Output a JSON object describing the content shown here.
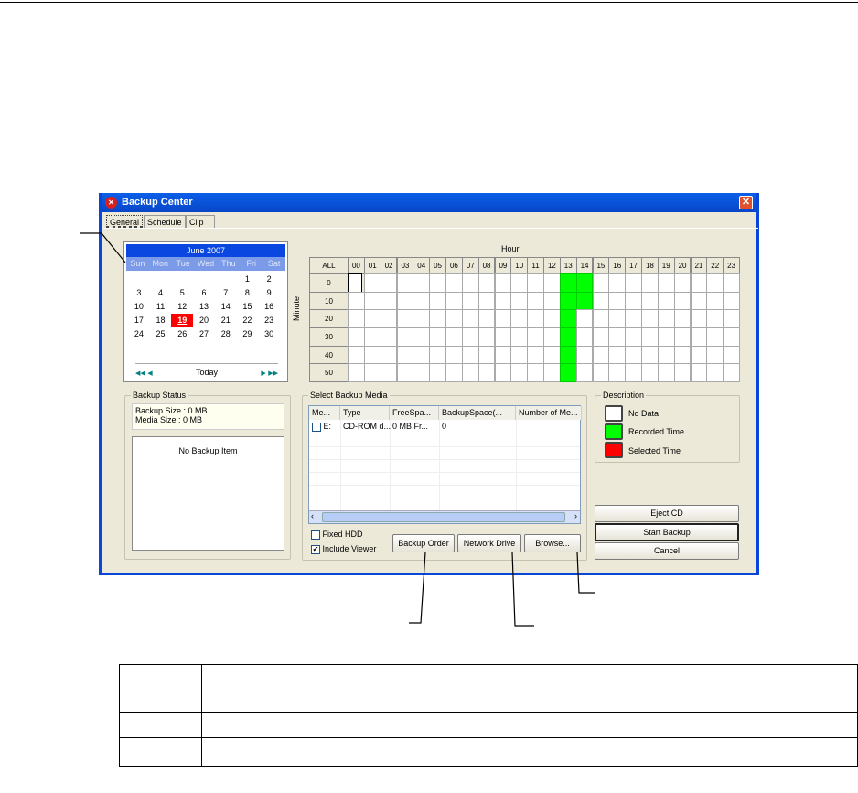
{
  "window": {
    "title": "Backup Center",
    "close": "✕",
    "icon": "app-logo"
  },
  "tabs": [
    {
      "label": "General",
      "active": true
    },
    {
      "label": "Schedule"
    },
    {
      "label": "Clip"
    }
  ],
  "calendar": {
    "month": "June 2007",
    "weekdays": [
      "Sun",
      "Mon",
      "Tue",
      "Wed",
      "Thu",
      "Fri",
      "Sat"
    ],
    "days": [
      "",
      "",
      "",
      "",
      "",
      "1",
      "2",
      "3",
      "4",
      "5",
      "6",
      "7",
      "8",
      "9",
      "10",
      "11",
      "12",
      "13",
      "14",
      "15",
      "16",
      "17",
      "18",
      "19",
      "20",
      "21",
      "22",
      "23",
      "24",
      "25",
      "26",
      "27",
      "28",
      "29",
      "30"
    ],
    "selected": "19",
    "today_label": "Today"
  },
  "hour_grid": {
    "title": "Hour",
    "minute_label": "Minute",
    "all_label": "ALL",
    "hours": [
      "00",
      "01",
      "02",
      "03",
      "04",
      "05",
      "06",
      "07",
      "08",
      "09",
      "10",
      "11",
      "12",
      "13",
      "14",
      "15",
      "16",
      "17",
      "18",
      "19",
      "20",
      "21",
      "22",
      "23"
    ],
    "minutes": [
      "0",
      "10",
      "20",
      "30",
      "40",
      "50"
    ],
    "recorded": {
      "13": [
        "0",
        "10",
        "20",
        "30",
        "40",
        "50"
      ],
      "14": [
        "0",
        "10"
      ]
    },
    "recorded_color": "#00ff00"
  },
  "backup_status": {
    "title": "Backup Status",
    "backup_size": "Backup Size : 0 MB",
    "media_size": "Media Size : 0 MB",
    "empty": "No Backup Item"
  },
  "media": {
    "title": "Select Backup Media",
    "columns": [
      "Me...",
      "Type",
      "FreeSpa...",
      "BackupSpace(...",
      "Number of Me..."
    ],
    "rows": [
      [
        "E:",
        "CD-ROM d...",
        "0 MB Fr...",
        "0",
        ""
      ]
    ],
    "fixed_hdd": "Fixed HDD",
    "include_viewer": "Include Viewer",
    "include_viewer_checked": true,
    "fixed_hdd_checked": false,
    "backup_order": "Backup Order",
    "network_drive": "Network Drive",
    "browse": "Browse..."
  },
  "description": {
    "title": "Description",
    "items": [
      {
        "label": "No Data",
        "color": "#ffffff"
      },
      {
        "label": "Recorded Time",
        "color": "#00ff00"
      },
      {
        "label": "Selected Time",
        "color": "#ff0000"
      }
    ]
  },
  "actions": {
    "eject": "Eject CD",
    "start": "Start Backup",
    "cancel": "Cancel"
  }
}
